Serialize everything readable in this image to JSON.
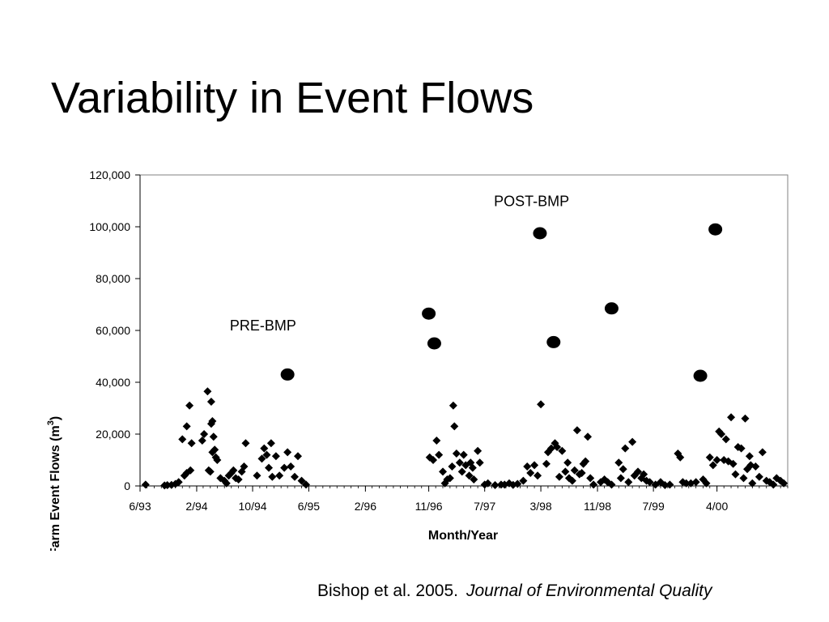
{
  "slide": {
    "title": "Variability in Event Flows",
    "citation_author": "Bishop et al. 2005.",
    "citation_journal": "Journal of Environmental Quality"
  },
  "colors": {
    "marker": "#000000",
    "axis": "#000000",
    "background": "#ffffff"
  },
  "chart_data": {
    "type": "scatter",
    "xlabel": "Month/Year",
    "ylabel": "Farm Event Flows (m",
    "ylabel_sup": "3",
    "ylabel_close": ")",
    "xlim": [
      "1993-06-01",
      "2001-02-01"
    ],
    "ylim": [
      0,
      120000
    ],
    "grid": false,
    "legend": "none",
    "x_ticks": [
      "1993-06-01",
      "1994-02-01",
      "1994-10-01",
      "1995-06-01",
      "1996-02-01",
      "1996-11-01",
      "1997-07-01",
      "1998-03-01",
      "1998-11-01",
      "1999-07-01",
      "2000-04-01"
    ],
    "x_tick_labels": [
      "6/93",
      "2/94",
      "10/94",
      "6/95",
      "2/96",
      "11/96",
      "7/97",
      "3/98",
      "11/98",
      "7/99",
      "4/00"
    ],
    "y_ticks": [
      0,
      20000,
      40000,
      60000,
      80000,
      100000,
      120000
    ],
    "y_tick_labels": [
      "0",
      "20,000",
      "40,000",
      "60,000",
      "80,000",
      "100,000",
      "120,000"
    ],
    "annotations": [
      {
        "text": "PRE-BMP",
        "x": "1994-11-15",
        "y": 60000
      },
      {
        "text": "POST-BMP",
        "x": "1998-01-20",
        "y": 108000
      }
    ],
    "series": [
      {
        "marker": "diamond",
        "points": [
          [
            "1993-06-25",
            500
          ],
          [
            "1993-09-15",
            200
          ],
          [
            "1993-09-27",
            300
          ],
          [
            "1993-10-15",
            400
          ],
          [
            "1993-11-01",
            800
          ],
          [
            "1993-11-15",
            1500
          ],
          [
            "1993-12-10",
            4000
          ],
          [
            "1993-12-20",
            5000
          ],
          [
            "1994-01-05",
            6000
          ],
          [
            "1993-12-01",
            18000
          ],
          [
            "1993-12-20",
            23000
          ],
          [
            "1994-01-01",
            31000
          ],
          [
            "1994-01-10",
            16500
          ],
          [
            "1994-02-25",
            17500
          ],
          [
            "1994-03-05",
            20000
          ],
          [
            "1994-03-20",
            36500
          ],
          [
            "1994-04-05",
            32500
          ],
          [
            "1994-03-25",
            6000
          ],
          [
            "1994-04-01",
            5500
          ],
          [
            "1994-04-05",
            24000
          ],
          [
            "1994-04-10",
            25000
          ],
          [
            "1994-04-15",
            19000
          ],
          [
            "1994-04-20",
            14000
          ],
          [
            "1994-04-10",
            13000
          ],
          [
            "1994-04-25",
            11000
          ],
          [
            "1994-05-01",
            10000
          ],
          [
            "1994-05-15",
            3000
          ],
          [
            "1994-06-01",
            2000
          ],
          [
            "1994-06-10",
            1000
          ],
          [
            "1994-06-20",
            4000
          ],
          [
            "1994-07-01",
            5000
          ],
          [
            "1994-07-10",
            6000
          ],
          [
            "1994-07-20",
            3000
          ],
          [
            "1994-08-01",
            2500
          ],
          [
            "1994-08-15",
            5500
          ],
          [
            "1994-08-25",
            7500
          ],
          [
            "1994-09-01",
            16500
          ],
          [
            "1994-10-20",
            4000
          ],
          [
            "1994-11-10",
            10500
          ],
          [
            "1994-11-20",
            14500
          ],
          [
            "1994-12-01",
            12000
          ],
          [
            "1994-12-10",
            7000
          ],
          [
            "1994-12-20",
            16500
          ],
          [
            "1994-12-25",
            3500
          ],
          [
            "1995-01-10",
            11500
          ],
          [
            "1995-01-25",
            4000
          ],
          [
            "1995-02-15",
            7000
          ],
          [
            "1995-03-01",
            13000
          ],
          [
            "1995-03-15",
            7500
          ],
          [
            "1995-04-01",
            3500
          ],
          [
            "1995-04-15",
            11500
          ],
          [
            "1995-05-01",
            2000
          ],
          [
            "1995-05-20",
            500
          ],
          [
            "1996-11-05",
            11000
          ],
          [
            "1996-11-20",
            10000
          ],
          [
            "1996-12-05",
            17500
          ],
          [
            "1996-12-15",
            12000
          ],
          [
            "1997-01-01",
            5500
          ],
          [
            "1997-01-10",
            1000
          ],
          [
            "1997-01-20",
            2500
          ],
          [
            "1997-02-01",
            3000
          ],
          [
            "1997-02-10",
            7500
          ],
          [
            "1997-02-15",
            31000
          ],
          [
            "1997-02-20",
            23000
          ],
          [
            "1997-03-01",
            12500
          ],
          [
            "1997-03-15",
            9000
          ],
          [
            "1997-03-25",
            5500
          ],
          [
            "1997-04-01",
            12000
          ],
          [
            "1997-04-10",
            8000
          ],
          [
            "1997-04-25",
            4000
          ],
          [
            "1997-05-01",
            9000
          ],
          [
            "1997-05-10",
            7000
          ],
          [
            "1997-05-15",
            2500
          ],
          [
            "1997-06-01",
            13500
          ],
          [
            "1997-06-10",
            9000
          ],
          [
            "1997-07-01",
            500
          ],
          [
            "1997-07-15",
            1000
          ],
          [
            "1997-08-15",
            300
          ],
          [
            "1997-09-10",
            500
          ],
          [
            "1997-09-25",
            500
          ],
          [
            "1997-10-15",
            1000
          ],
          [
            "1997-11-01",
            400
          ],
          [
            "1997-11-20",
            800
          ],
          [
            "1997-12-15",
            2000
          ],
          [
            "1998-01-01",
            7500
          ],
          [
            "1998-01-15",
            5000
          ],
          [
            "1998-02-01",
            8000
          ],
          [
            "1998-02-15",
            4000
          ],
          [
            "1998-03-01",
            31500
          ],
          [
            "1998-03-25",
            8500
          ],
          [
            "1998-04-01",
            13000
          ],
          [
            "1998-04-15",
            14500
          ],
          [
            "1998-05-01",
            16500
          ],
          [
            "1998-05-10",
            15000
          ],
          [
            "1998-05-20",
            3500
          ],
          [
            "1998-06-01",
            13500
          ],
          [
            "1998-06-15",
            5500
          ],
          [
            "1998-06-25",
            9000
          ],
          [
            "1998-07-01",
            3000
          ],
          [
            "1998-07-15",
            2000
          ],
          [
            "1998-07-25",
            6000
          ],
          [
            "1998-08-05",
            21500
          ],
          [
            "1998-08-15",
            4500
          ],
          [
            "1998-08-25",
            5000
          ],
          [
            "1998-09-01",
            8500
          ],
          [
            "1998-09-10",
            9500
          ],
          [
            "1998-09-20",
            19000
          ],
          [
            "1998-10-01",
            3000
          ],
          [
            "1998-10-15",
            500
          ],
          [
            "1998-11-15",
            1500
          ],
          [
            "1998-12-01",
            2500
          ],
          [
            "1998-12-15",
            1500
          ],
          [
            "1999-01-01",
            500
          ],
          [
            "1999-02-01",
            9000
          ],
          [
            "1999-02-10",
            3000
          ],
          [
            "1999-02-20",
            6500
          ],
          [
            "1999-03-01",
            14500
          ],
          [
            "1999-03-15",
            1500
          ],
          [
            "1999-04-01",
            17000
          ],
          [
            "1999-04-10",
            4000
          ],
          [
            "1999-04-25",
            5500
          ],
          [
            "1999-05-10",
            3000
          ],
          [
            "1999-05-20",
            4500
          ],
          [
            "1999-06-01",
            2000
          ],
          [
            "1999-06-15",
            1500
          ],
          [
            "1999-07-10",
            500
          ],
          [
            "1999-08-01",
            1500
          ],
          [
            "1999-08-20",
            300
          ],
          [
            "1999-09-10",
            500
          ],
          [
            "1999-10-15",
            12500
          ],
          [
            "1999-10-25",
            11000
          ],
          [
            "1999-11-05",
            1500
          ],
          [
            "1999-11-20",
            1000
          ],
          [
            "1999-12-10",
            1000
          ],
          [
            "2000-01-01",
            1500
          ],
          [
            "2000-02-01",
            2500
          ],
          [
            "2000-02-15",
            1000
          ],
          [
            "2000-03-01",
            11000
          ],
          [
            "2000-03-15",
            8000
          ],
          [
            "2000-04-01",
            10000
          ],
          [
            "2000-04-10",
            21000
          ],
          [
            "2000-04-20",
            20000
          ],
          [
            "2000-05-01",
            10000
          ],
          [
            "2000-05-10",
            18000
          ],
          [
            "2000-05-20",
            9500
          ],
          [
            "2000-06-01",
            26500
          ],
          [
            "2000-06-10",
            8500
          ],
          [
            "2000-06-20",
            4500
          ],
          [
            "2000-07-01",
            15000
          ],
          [
            "2000-07-15",
            14500
          ],
          [
            "2000-07-25",
            3000
          ],
          [
            "2000-08-01",
            26000
          ],
          [
            "2000-08-10",
            6500
          ],
          [
            "2000-08-20",
            11500
          ],
          [
            "2000-08-25",
            8000
          ],
          [
            "2000-09-01",
            1000
          ],
          [
            "2000-09-15",
            7500
          ],
          [
            "2000-10-01",
            3500
          ],
          [
            "2000-10-15",
            13000
          ],
          [
            "2000-11-01",
            2000
          ],
          [
            "2000-11-15",
            1500
          ],
          [
            "2000-12-01",
            500
          ],
          [
            "2000-12-15",
            3000
          ],
          [
            "2001-01-01",
            2000
          ],
          [
            "2001-01-15",
            1000
          ]
        ]
      },
      {
        "marker": "circle",
        "points": [
          [
            "1995-03-01",
            43000
          ],
          [
            "1996-11-01",
            66500
          ],
          [
            "1996-11-25",
            55000
          ],
          [
            "1998-02-25",
            97500
          ],
          [
            "1998-04-25",
            55500
          ],
          [
            "1999-01-01",
            68500
          ],
          [
            "2000-01-20",
            42500
          ],
          [
            "2000-03-25",
            99000
          ]
        ]
      }
    ]
  }
}
